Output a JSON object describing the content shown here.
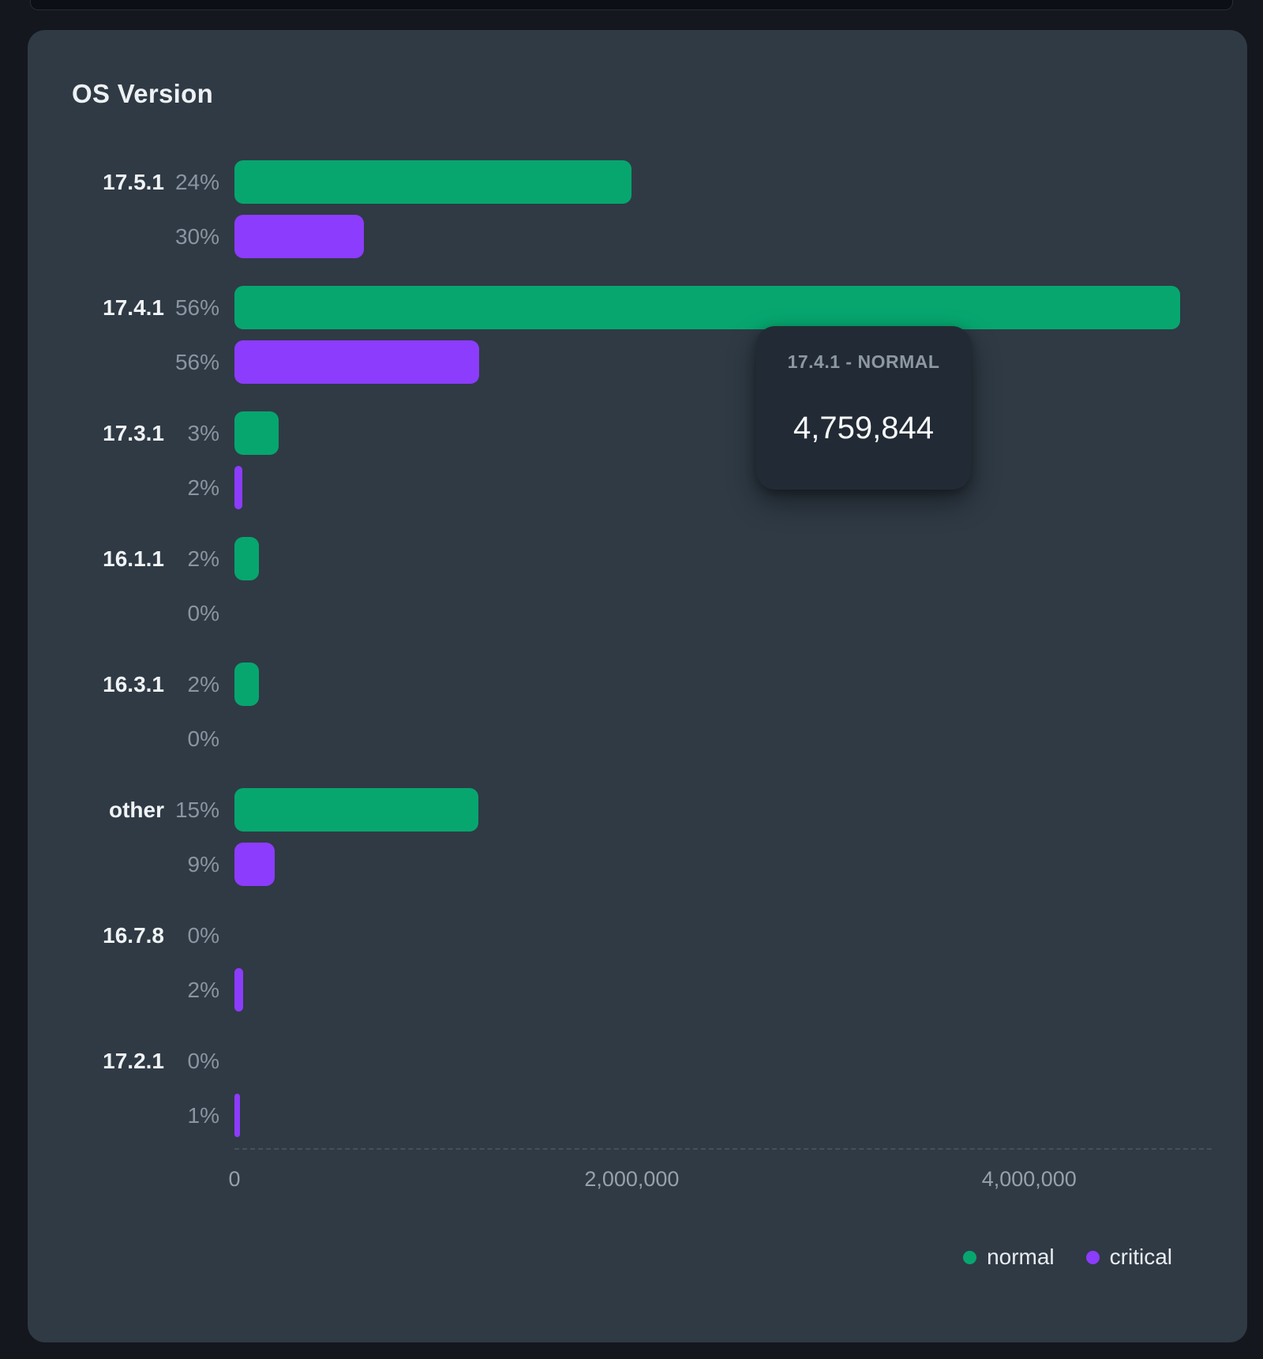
{
  "panel": {
    "title": "OS Version"
  },
  "colors": {
    "page_bg": "#14171d",
    "card_bg": "#2f3a45",
    "normal": "#07a66f",
    "critical": "#8c3cfc",
    "tooltip_bg": "#222b35"
  },
  "chart_data": {
    "type": "bar",
    "orientation": "horizontal",
    "title": "OS Version",
    "categories": [
      "17.5.1",
      "17.4.1",
      "17.3.1",
      "16.1.1",
      "16.3.1",
      "other",
      "16.7.8",
      "17.2.1"
    ],
    "series": [
      {
        "name": "normal",
        "color": "#07a66f",
        "values": [
          2000000,
          4759844,
          222000,
          123000,
          123000,
          1228000,
          0,
          0
        ],
        "pct_labels": [
          "24%",
          "56%",
          "3%",
          "2%",
          "2%",
          "15%",
          "0%",
          "0%"
        ]
      },
      {
        "name": "critical",
        "color": "#8c3cfc",
        "values": [
          651000,
          1232000,
          40000,
          0,
          0,
          203000,
          44000,
          28000
        ],
        "pct_labels": [
          "30%",
          "56%",
          "2%",
          "0%",
          "0%",
          "9%",
          "2%",
          "1%"
        ]
      }
    ],
    "xlim": [
      0,
      4759844
    ],
    "x_ticks": [
      {
        "value": 0,
        "label": "0"
      },
      {
        "value": 2000000,
        "label": "2,000,000"
      },
      {
        "value": 4000000,
        "label": "4,000,000"
      }
    ],
    "legend": [
      {
        "label": "normal",
        "color": "#07a66f"
      },
      {
        "label": "critical",
        "color": "#8c3cfc"
      }
    ],
    "grid": "dashed-baseline",
    "legend_position": "bottom-right"
  },
  "tooltip": {
    "header": "17.4.1 - NORMAL",
    "value": "4,759,844"
  }
}
